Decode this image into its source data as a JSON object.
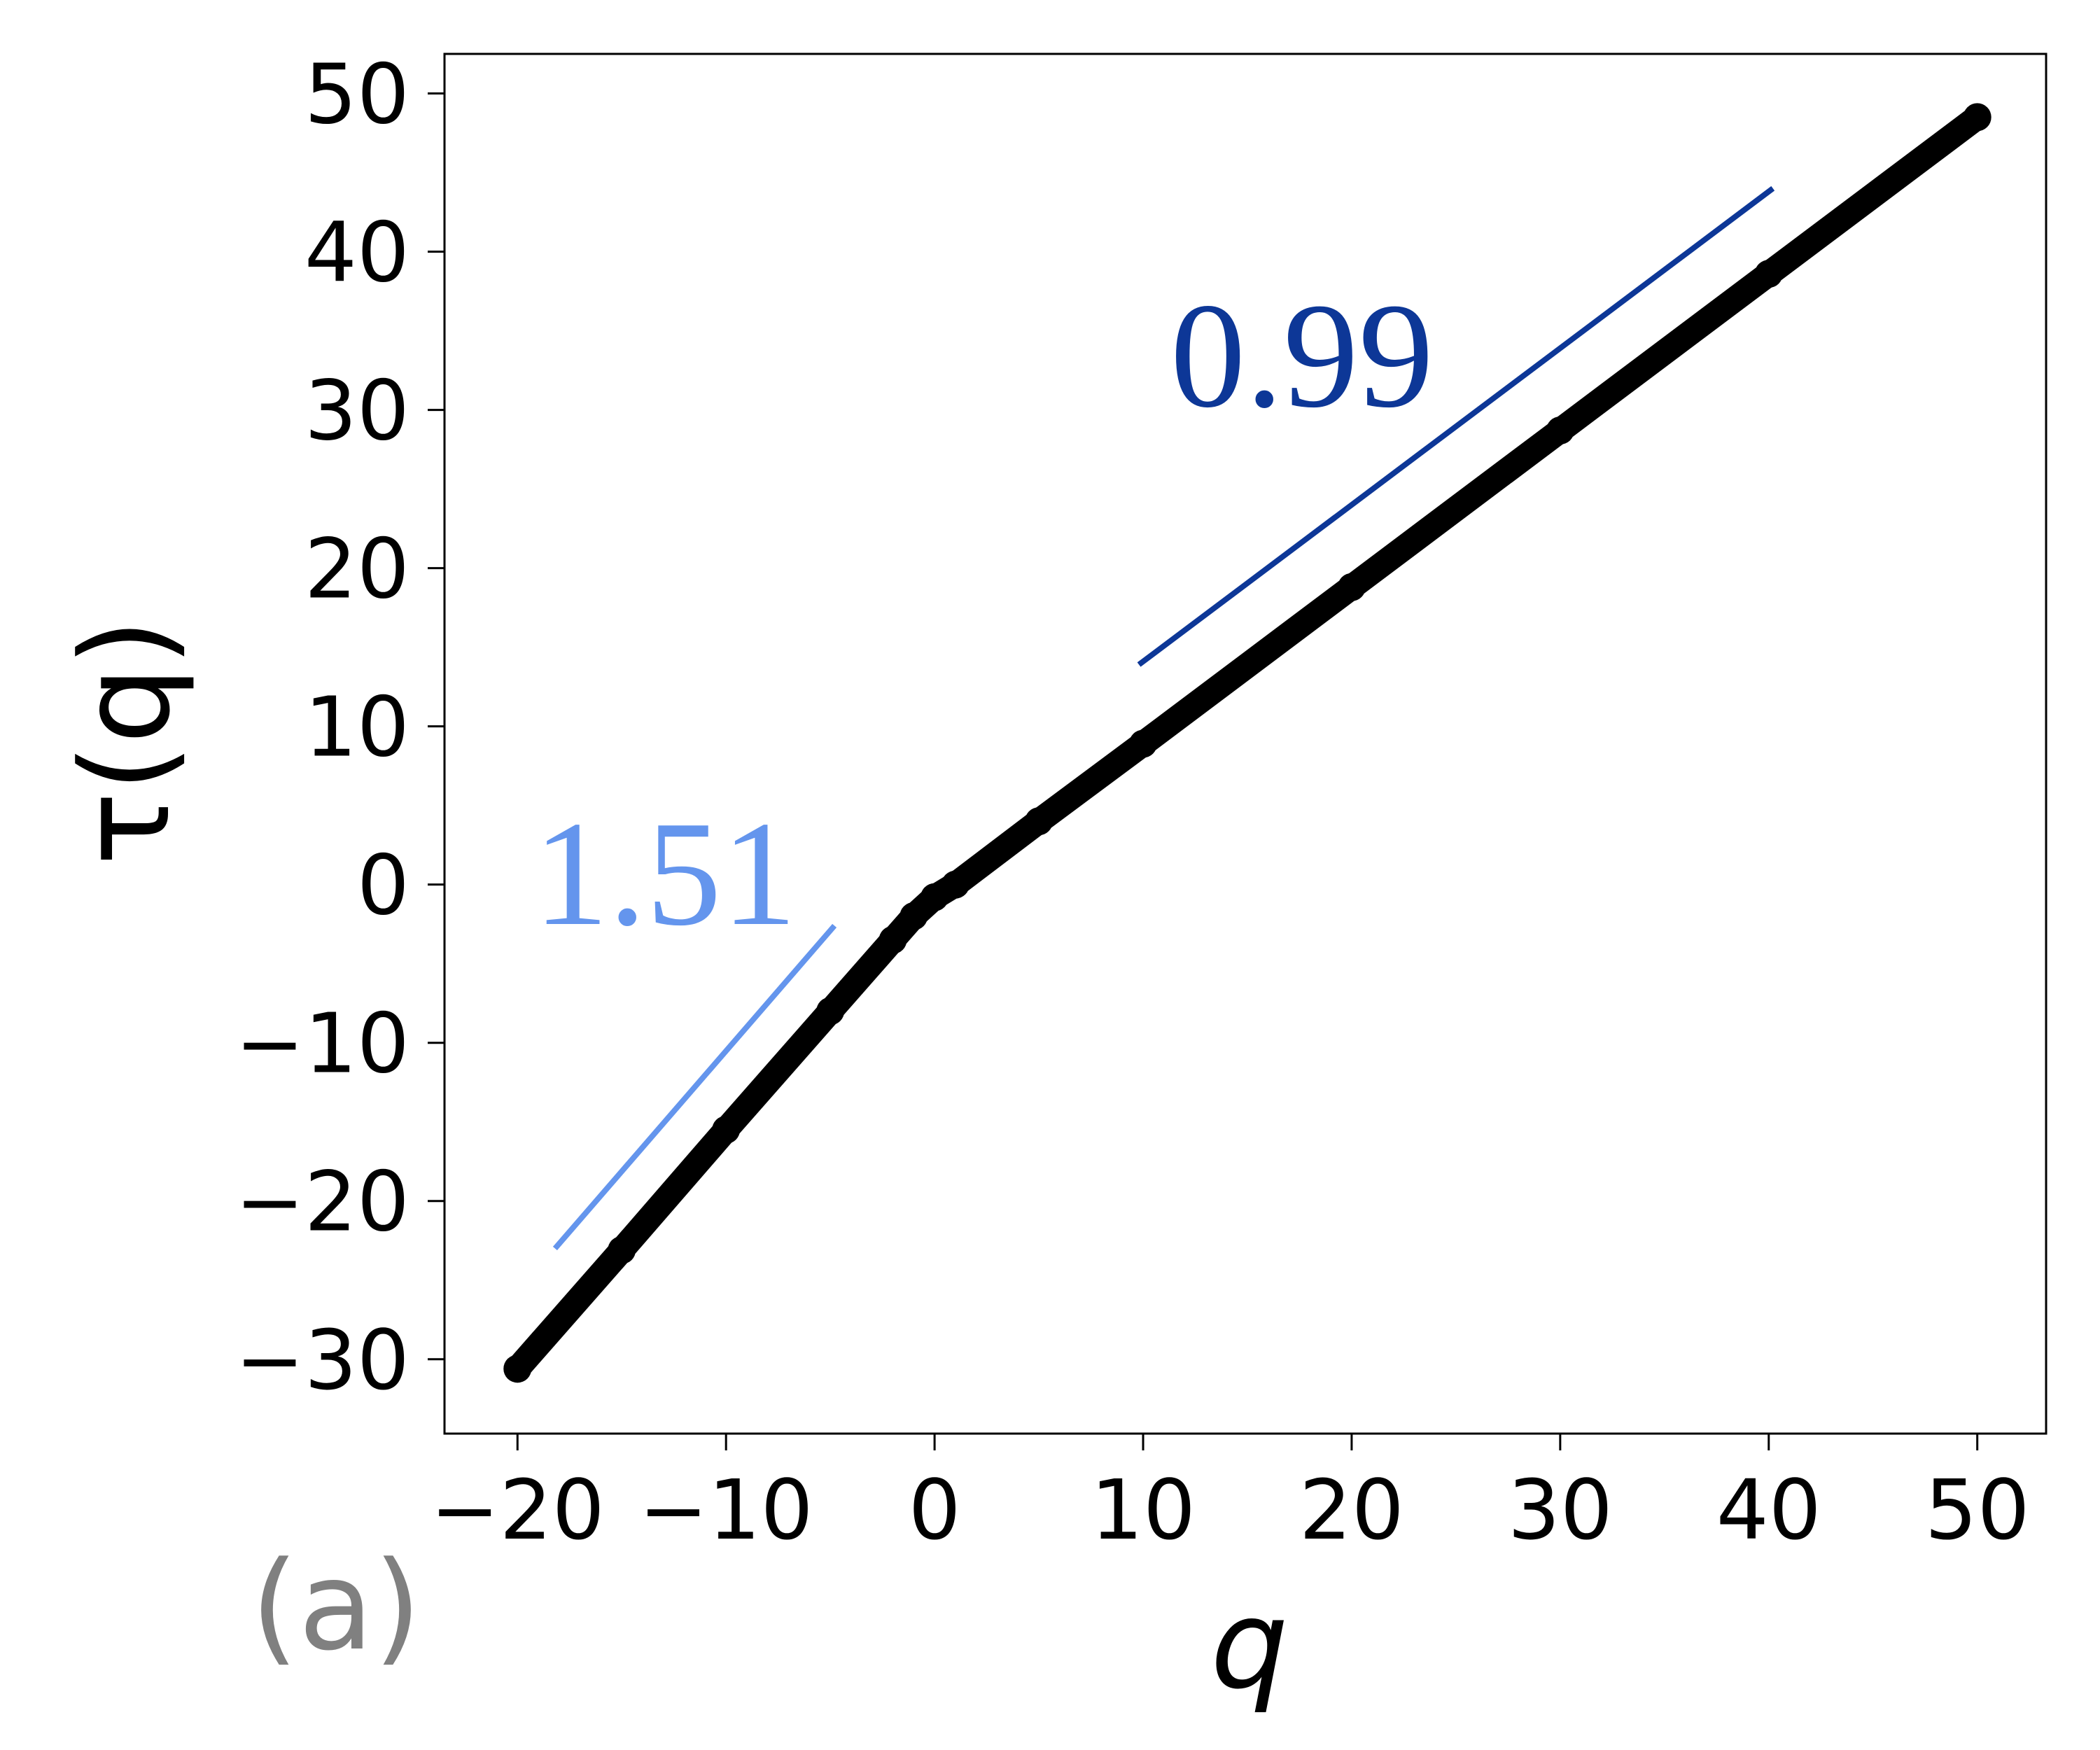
{
  "chart_data": {
    "type": "line",
    "xlabel": "q",
    "ylabel": "τ(q)",
    "panel_label": "(a)",
    "x": [
      -20,
      -15,
      -10,
      -5,
      -2,
      -1,
      0,
      1,
      5,
      10,
      20,
      30,
      40,
      50
    ],
    "values": [
      -30.6,
      -23.1,
      -15.5,
      -8.0,
      -3.5,
      -2.0,
      -0.8,
      0,
      4.0,
      8.9,
      18.8,
      28.7,
      38.6,
      48.5
    ],
    "color": "#000000",
    "reference_lines": [
      {
        "label": "1.51",
        "color": "#6495ed",
        "x": [
          -18.2,
          -4.8
        ],
        "y": [
          -23.0,
          -2.6
        ]
      },
      {
        "label": "0.99",
        "color": "#0d3797",
        "x": [
          9.8,
          40.2
        ],
        "y": [
          13.9,
          44.0
        ]
      }
    ],
    "xlim": [
      -23.5,
      53.3
    ],
    "ylim": [
      -34.7,
      52.5
    ],
    "xticks": [
      {
        "value": -20,
        "label": "−20"
      },
      {
        "value": -10,
        "label": "−10"
      },
      0,
      10,
      20,
      30,
      40,
      50
    ],
    "yticks": [
      {
        "value": -30,
        "label": "−30"
      },
      {
        "value": -20,
        "label": "−20"
      },
      {
        "value": -10,
        "label": "−10"
      },
      0,
      10,
      20,
      30,
      40,
      50
    ],
    "grid": false
  }
}
